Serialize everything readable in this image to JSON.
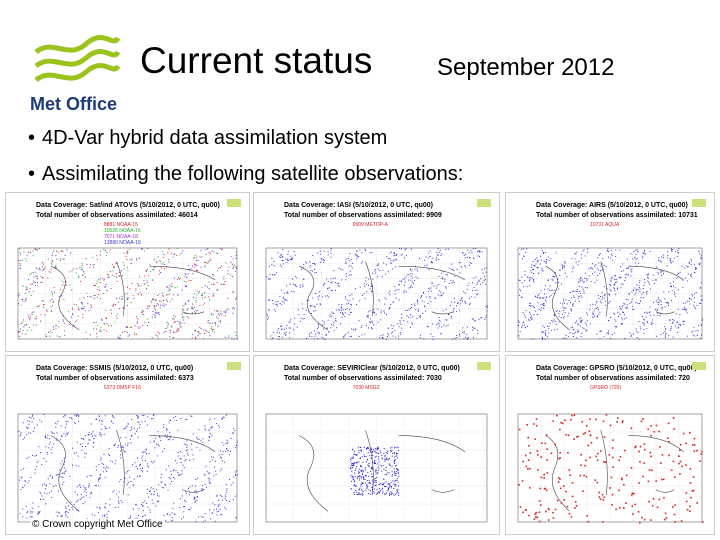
{
  "header": {
    "logo": "Met Office",
    "title": "Current status",
    "date": "September 2012"
  },
  "bullets": [
    "4D-Var hybrid data assimilation system",
    "Assimilating the following satellite observations:"
  ],
  "panels": [
    {
      "title": "Data Coverage: Sat/ind ATOVS (5/10/2012, 0 UTC, qu00)",
      "total": "Total number of observations assimilated: 46014",
      "legend": [
        "8881 NOAA-15",
        "10526 NOAA-16",
        "7071 NOAA-18",
        "13880 NOAA-19"
      ]
    },
    {
      "title": "Data Coverage: IASI (5/10/2012, 0 UTC, qu00)",
      "total": "Total number of observations assimilated: 9909",
      "legend": [
        "9909 METOP-A"
      ]
    },
    {
      "title": "Data Coverage: AIRS (5/10/2012, 0 UTC, qu00)",
      "total": "Total number of observations assimilated: 10731",
      "legend": [
        "10731 AQUA"
      ]
    },
    {
      "title": "Data Coverage: SSMIS (5/10/2012, 0 UTC, qu00)",
      "total": "Total number of observations assimilated: 6373",
      "legend": [
        "6373 DMSP F16"
      ]
    },
    {
      "title": "Data Coverage: SEVIRIClear (5/10/2012, 0 UTC, qu00)",
      "total": "Total number of observations assimilated: 7030",
      "legend": [
        "7030 MSG2"
      ]
    },
    {
      "title": "Data Coverage: GPSRO (5/10/2012, 0 UTC, qu00)",
      "total": "Total number of observations assimilated: 720",
      "legend": [
        "GPSRO (720)"
      ]
    }
  ],
  "footer": "© Crown copyright   Met Office"
}
